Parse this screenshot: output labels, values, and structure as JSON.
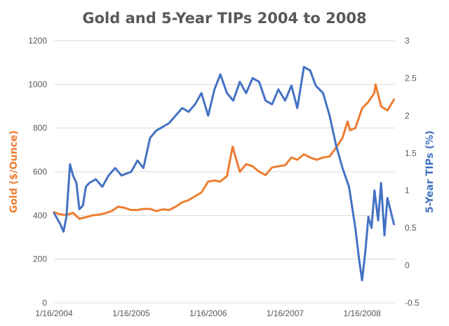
{
  "chart_data": {
    "type": "line",
    "title": "Gold and 5-Year TIPs 2004 to 2008",
    "xlabel": "",
    "x_ticks": [
      "1/16/2004",
      "1/16/2005",
      "1/16/2006",
      "1/16/2007",
      "1/16/2008"
    ],
    "y_left": {
      "label": "Gold ($/Ounce)",
      "min": 0,
      "max": 1200,
      "step": 200,
      "ticks": [
        "0",
        "200",
        "400",
        "600",
        "800",
        "1000",
        "1200"
      ]
    },
    "y_right": {
      "label": "5-Year TIPs (%)",
      "min": -0.5,
      "max": 3,
      "step": 0.5,
      "ticks": [
        "-0.5",
        "0",
        "0.5",
        "1",
        "1.5",
        "2",
        "2.5",
        "3"
      ]
    },
    "grid": true,
    "legend": "none",
    "colors": {
      "gold": "#ed7d31",
      "tips": "#4472c4"
    },
    "series": [
      {
        "name": "Gold ($/Ounce)",
        "axis": "left",
        "x": [
          "2004-01-16",
          "2004-02-15",
          "2004-03-15",
          "2004-04-15",
          "2004-05-15",
          "2004-06-15",
          "2004-07-15",
          "2004-08-15",
          "2004-09-15",
          "2004-10-15",
          "2004-11-15",
          "2004-12-15",
          "2005-01-15",
          "2005-02-15",
          "2005-03-15",
          "2005-04-15",
          "2005-05-15",
          "2005-06-15",
          "2005-07-15",
          "2005-08-15",
          "2005-09-15",
          "2005-10-15",
          "2005-11-15",
          "2005-12-15",
          "2006-01-16",
          "2006-02-15",
          "2006-03-15",
          "2006-04-15",
          "2006-05-12",
          "2006-06-15",
          "2006-07-15",
          "2006-08-15",
          "2006-09-15",
          "2006-10-15",
          "2006-11-15",
          "2006-12-15",
          "2007-01-16",
          "2007-02-15",
          "2007-03-15",
          "2007-04-15",
          "2007-05-15",
          "2007-06-15",
          "2007-07-15",
          "2007-08-15",
          "2007-09-15",
          "2007-10-15",
          "2007-11-08",
          "2007-11-20",
          "2007-12-15",
          "2008-01-16",
          "2008-02-15",
          "2008-03-14",
          "2008-03-20",
          "2008-04-15",
          "2008-05-15",
          "2008-06-15"
        ],
        "y": [
          415,
          405,
          402,
          412,
          385,
          392,
          400,
          404,
          410,
          420,
          440,
          435,
          425,
          425,
          430,
          430,
          420,
          428,
          425,
          440,
          460,
          470,
          488,
          505,
          555,
          560,
          555,
          580,
          715,
          600,
          635,
          625,
          600,
          585,
          620,
          625,
          630,
          665,
          655,
          680,
          665,
          655,
          665,
          670,
          710,
          755,
          830,
          790,
          800,
          890,
          920,
          960,
          1000,
          900,
          880,
          930
        ]
      },
      {
        "name": "5-Year TIPs (%)",
        "axis": "right",
        "x": [
          "2004-01-16",
          "2004-02-15",
          "2004-03-01",
          "2004-03-15",
          "2004-04-01",
          "2004-04-15",
          "2004-05-01",
          "2004-05-15",
          "2004-06-01",
          "2004-06-15",
          "2004-07-01",
          "2004-08-01",
          "2004-09-01",
          "2004-10-01",
          "2004-11-01",
          "2004-12-01",
          "2005-01-16",
          "2005-02-15",
          "2005-03-15",
          "2005-04-15",
          "2005-05-15",
          "2005-06-15",
          "2005-07-15",
          "2005-08-15",
          "2005-09-15",
          "2005-10-15",
          "2005-11-15",
          "2005-12-15",
          "2006-01-16",
          "2006-02-15",
          "2006-03-15",
          "2006-04-15",
          "2006-05-15",
          "2006-06-15",
          "2006-07-15",
          "2006-08-15",
          "2006-09-15",
          "2006-10-15",
          "2006-11-15",
          "2006-12-15",
          "2007-01-16",
          "2007-02-15",
          "2007-03-15",
          "2007-04-15",
          "2007-05-15",
          "2007-06-10",
          "2007-07-15",
          "2007-08-15",
          "2007-09-15",
          "2007-10-15",
          "2007-11-15",
          "2007-12-15",
          "2008-01-01",
          "2008-01-16",
          "2008-02-01",
          "2008-02-15",
          "2008-03-01",
          "2008-03-15",
          "2008-04-01",
          "2008-04-15",
          "2008-05-01",
          "2008-05-15",
          "2008-06-15"
        ],
        "y": [
          0.7,
          0.55,
          0.45,
          0.65,
          1.35,
          1.2,
          1.1,
          0.75,
          0.8,
          1.05,
          1.1,
          1.15,
          1.05,
          1.2,
          1.3,
          1.2,
          1.25,
          1.4,
          1.3,
          1.7,
          1.8,
          1.85,
          1.9,
          2.0,
          2.1,
          2.05,
          2.15,
          2.3,
          2.0,
          2.35,
          2.55,
          2.3,
          2.2,
          2.45,
          2.3,
          2.5,
          2.45,
          2.2,
          2.15,
          2.35,
          2.2,
          2.4,
          2.1,
          2.65,
          2.6,
          2.4,
          2.3,
          2.0,
          1.6,
          1.3,
          1.05,
          0.5,
          0.1,
          -0.2,
          0.2,
          0.65,
          0.5,
          1.0,
          0.6,
          1.1,
          0.4,
          0.9,
          0.55
        ]
      }
    ]
  }
}
